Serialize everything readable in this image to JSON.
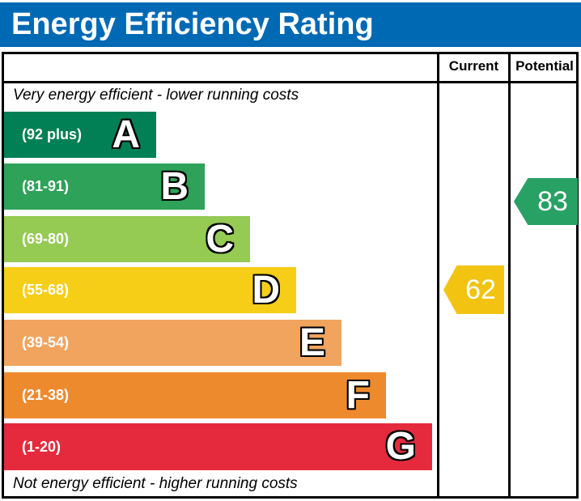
{
  "title": "Energy Efficiency Rating",
  "title_bar_color": "#0069b4",
  "columns": {
    "current_label": "Current",
    "potential_label": "Potential"
  },
  "top_note": "Very energy efficient - lower running costs",
  "bottom_note": "Not energy efficient - higher running costs",
  "chart_data": {
    "type": "bar",
    "subtype": "energy-efficiency-rating-bands",
    "bands": [
      {
        "letter": "A",
        "range_label": "(92 plus)",
        "range_min": 92,
        "range_max": 100,
        "color": "#008054"
      },
      {
        "letter": "B",
        "range_label": "(81-91)",
        "range_min": 81,
        "range_max": 91,
        "color": "#2da258"
      },
      {
        "letter": "C",
        "range_label": "(69-80)",
        "range_min": 69,
        "range_max": 80,
        "color": "#95ca53"
      },
      {
        "letter": "D",
        "range_label": "(55-68)",
        "range_min": 55,
        "range_max": 68,
        "color": "#f7ce17"
      },
      {
        "letter": "E",
        "range_label": "(39-54)",
        "range_min": 39,
        "range_max": 54,
        "color": "#f1a45e"
      },
      {
        "letter": "F",
        "range_label": "(21-38)",
        "range_min": 21,
        "range_max": 38,
        "color": "#ee8a2e"
      },
      {
        "letter": "G",
        "range_label": "(1-20)",
        "range_min": 1,
        "range_max": 20,
        "color": "#e52a3e"
      }
    ],
    "current": {
      "value": 62,
      "band": "D",
      "color": "#f2c411"
    },
    "potential": {
      "value": 83,
      "band": "B",
      "color": "#28a164"
    }
  }
}
